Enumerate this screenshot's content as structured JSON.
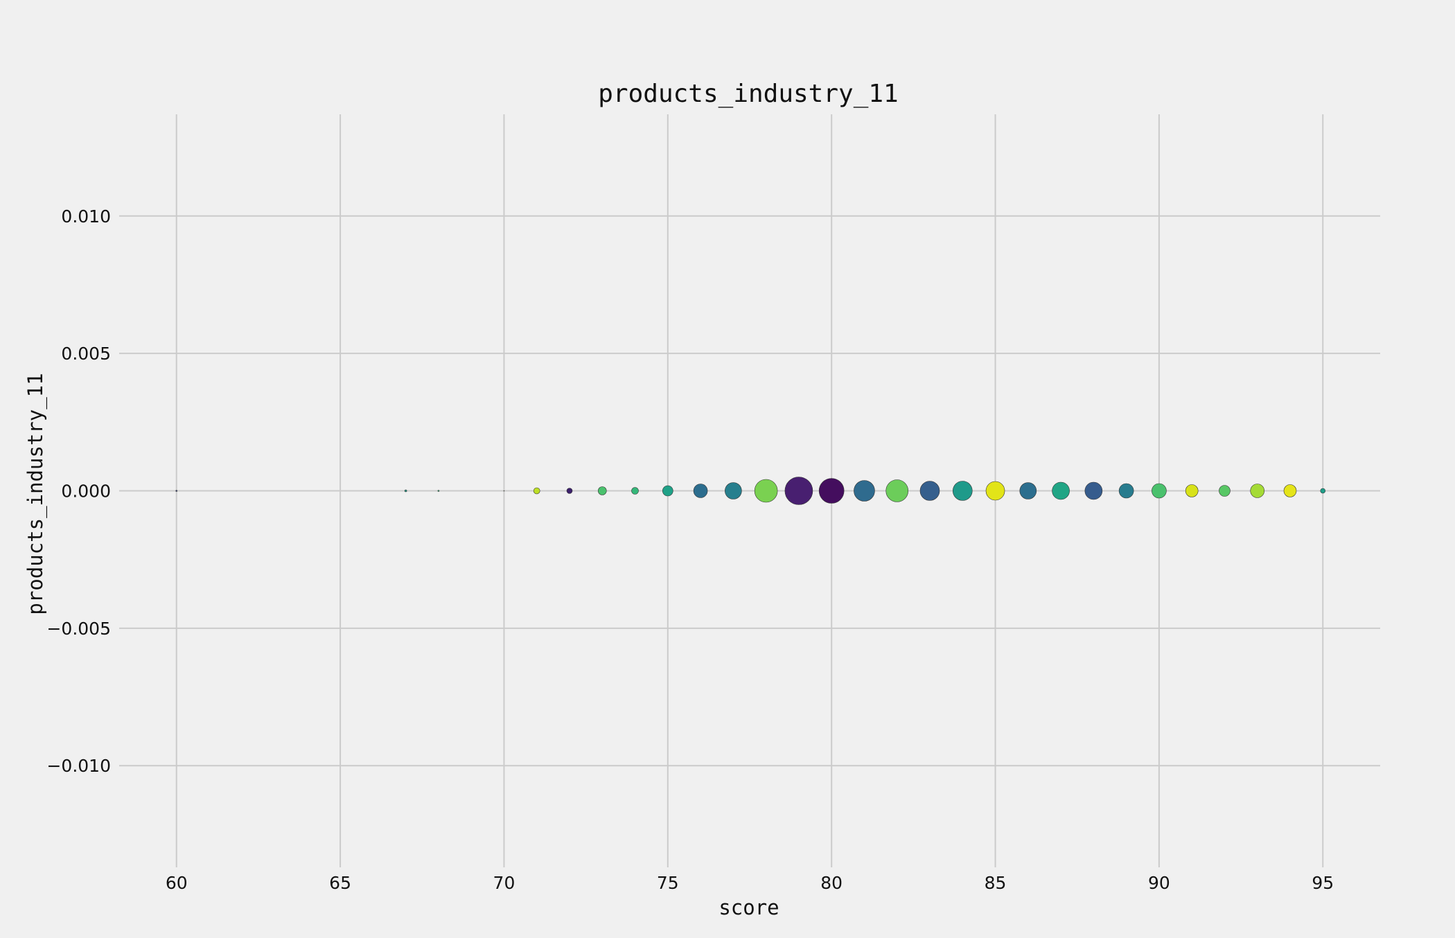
{
  "chart_data": {
    "type": "scatter",
    "title": "products_industry_11",
    "xlabel": "score",
    "ylabel": "products_industry_11",
    "xlim": [
      58.25,
      96.75
    ],
    "ylim": [
      -0.0137,
      0.0137
    ],
    "xticks": [
      60,
      65,
      70,
      75,
      80,
      85,
      90,
      95
    ],
    "yticks": [
      0.01,
      0.005,
      0.0,
      -0.005,
      -0.01
    ],
    "xtick_labels": [
      "60",
      "65",
      "70",
      "75",
      "80",
      "85",
      "90",
      "95"
    ],
    "ytick_labels": [
      "0.010",
      "0.005",
      "0.000",
      "−0.005",
      "−0.010"
    ],
    "grid": true,
    "background": "#f0f0f0",
    "colormap": "viridis",
    "points": [
      {
        "x": 60,
        "y": 0,
        "size": 2,
        "color": "#3e4a89"
      },
      {
        "x": 67,
        "y": 0,
        "size": 3,
        "color": "#2a9d8a"
      },
      {
        "x": 68,
        "y": 0,
        "size": 2,
        "color": "#35b779"
      },
      {
        "x": 70,
        "y": 0,
        "size": 1,
        "color": "#a0da39"
      },
      {
        "x": 71,
        "y": 0,
        "size": 9,
        "color": "#bddf26"
      },
      {
        "x": 72,
        "y": 0,
        "size": 8,
        "color": "#3b1f6b"
      },
      {
        "x": 73,
        "y": 0,
        "size": 12,
        "color": "#4ac16d"
      },
      {
        "x": 74,
        "y": 0,
        "size": 10,
        "color": "#35b779"
      },
      {
        "x": 75,
        "y": 0,
        "size": 15,
        "color": "#1fa187"
      },
      {
        "x": 76,
        "y": 0,
        "size": 20,
        "color": "#2c6d8e"
      },
      {
        "x": 77,
        "y": 0,
        "size": 24,
        "color": "#277f8e"
      },
      {
        "x": 78,
        "y": 0,
        "size": 33,
        "color": "#7ad151"
      },
      {
        "x": 79,
        "y": 0,
        "size": 40,
        "color": "#481f70"
      },
      {
        "x": 80,
        "y": 0,
        "size": 36,
        "color": "#440e5e"
      },
      {
        "x": 81,
        "y": 0,
        "size": 30,
        "color": "#2f6b8e"
      },
      {
        "x": 82,
        "y": 0,
        "size": 32,
        "color": "#6ccd5a"
      },
      {
        "x": 83,
        "y": 0,
        "size": 28,
        "color": "#355f8d"
      },
      {
        "x": 84,
        "y": 0,
        "size": 28,
        "color": "#1f9a8a"
      },
      {
        "x": 85,
        "y": 0,
        "size": 27,
        "color": "#e2e418"
      },
      {
        "x": 86,
        "y": 0,
        "size": 24,
        "color": "#2c6e8e"
      },
      {
        "x": 87,
        "y": 0,
        "size": 25,
        "color": "#21a585"
      },
      {
        "x": 88,
        "y": 0,
        "size": 25,
        "color": "#365c8d"
      },
      {
        "x": 89,
        "y": 0,
        "size": 21,
        "color": "#287c8e"
      },
      {
        "x": 90,
        "y": 0,
        "size": 21,
        "color": "#4ac16d"
      },
      {
        "x": 91,
        "y": 0,
        "size": 18,
        "color": "#d8e219"
      },
      {
        "x": 92,
        "y": 0,
        "size": 16,
        "color": "#58c765"
      },
      {
        "x": 93,
        "y": 0,
        "size": 20,
        "color": "#a5db36"
      },
      {
        "x": 94,
        "y": 0,
        "size": 18,
        "color": "#e5e419"
      },
      {
        "x": 95,
        "y": 0,
        "size": 7,
        "color": "#1f9e89"
      }
    ]
  }
}
